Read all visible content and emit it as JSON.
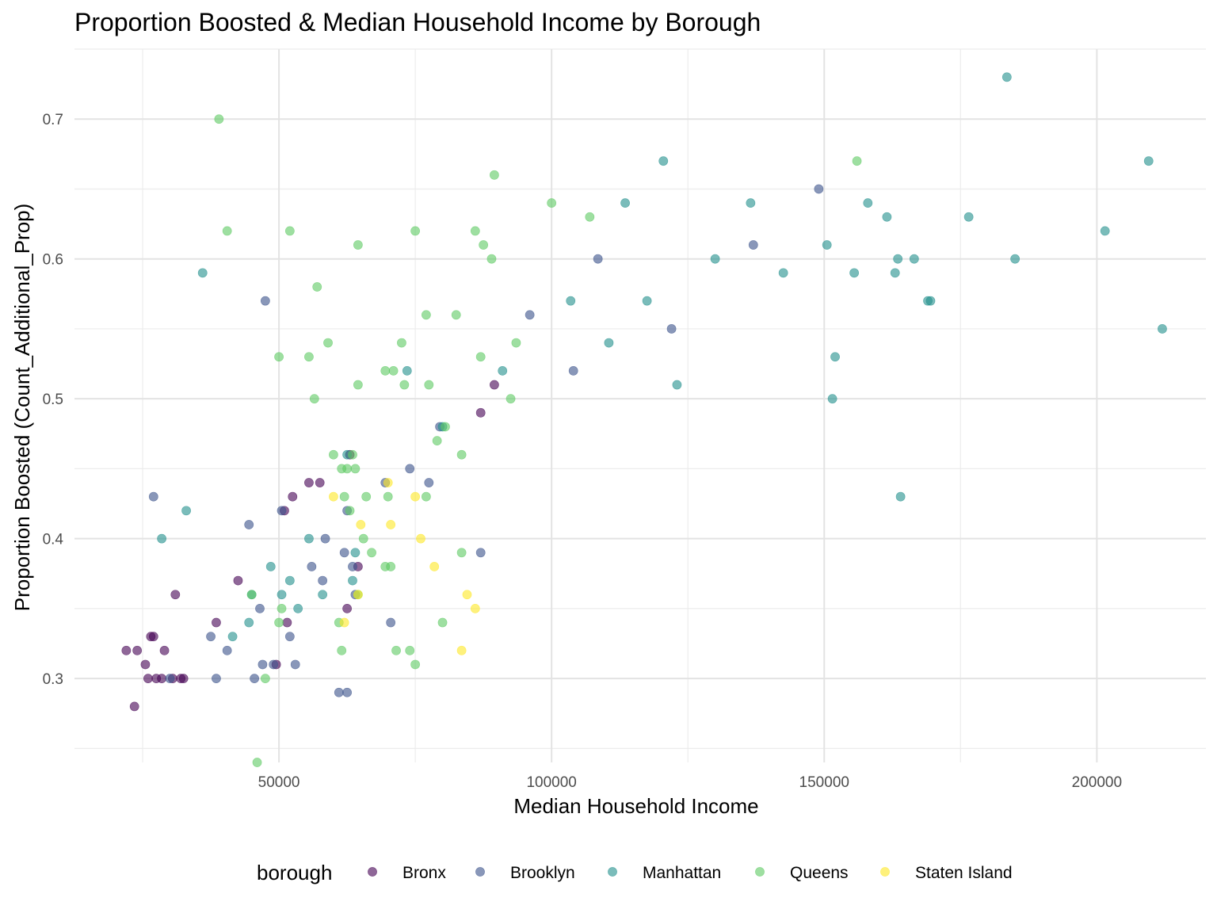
{
  "chart_data": {
    "type": "scatter",
    "title": "Proportion Boosted & Median Household Income by Borough",
    "xlabel": "Median Household Income",
    "ylabel": "Proportion Boosted (Count_Additional_Prop)",
    "xlim": [
      12500,
      220000
    ],
    "ylim": [
      0.24,
      0.75
    ],
    "x_ticks": [
      50000,
      100000,
      150000,
      200000
    ],
    "x_tick_labels": [
      "50000",
      "100000",
      "150000",
      "200000"
    ],
    "y_ticks": [
      0.3,
      0.4,
      0.5,
      0.6,
      0.7
    ],
    "y_tick_labels": [
      "0.3",
      "0.4",
      "0.5",
      "0.6",
      "0.7"
    ],
    "grid": true,
    "point_opacity": 0.6,
    "legend": {
      "title": "borough",
      "position": "bottom"
    },
    "series": [
      {
        "name": "Bronx",
        "color": "#440154",
        "points": [
          [
            22000,
            0.32
          ],
          [
            23500,
            0.28
          ],
          [
            24000,
            0.32
          ],
          [
            25500,
            0.31
          ],
          [
            26000,
            0.3
          ],
          [
            26500,
            0.33
          ],
          [
            27000,
            0.33
          ],
          [
            27500,
            0.3
          ],
          [
            28500,
            0.3
          ],
          [
            29000,
            0.32
          ],
          [
            30500,
            0.3
          ],
          [
            31000,
            0.36
          ],
          [
            32000,
            0.3
          ],
          [
            32500,
            0.3
          ],
          [
            38500,
            0.34
          ],
          [
            42500,
            0.37
          ],
          [
            49500,
            0.31
          ],
          [
            51000,
            0.42
          ],
          [
            51500,
            0.34
          ],
          [
            52500,
            0.43
          ],
          [
            55500,
            0.44
          ],
          [
            57500,
            0.44
          ],
          [
            62500,
            0.35
          ],
          [
            63000,
            0.46
          ],
          [
            64500,
            0.38
          ],
          [
            87000,
            0.49
          ],
          [
            89500,
            0.51
          ]
        ]
      },
      {
        "name": "Brooklyn",
        "color": "#3b528b",
        "points": [
          [
            27000,
            0.43
          ],
          [
            30000,
            0.3
          ],
          [
            37500,
            0.33
          ],
          [
            38500,
            0.3
          ],
          [
            40500,
            0.32
          ],
          [
            44500,
            0.41
          ],
          [
            45500,
            0.3
          ],
          [
            46500,
            0.35
          ],
          [
            47000,
            0.31
          ],
          [
            47500,
            0.57
          ],
          [
            49000,
            0.31
          ],
          [
            50500,
            0.42
          ],
          [
            52000,
            0.33
          ],
          [
            53000,
            0.31
          ],
          [
            56000,
            0.38
          ],
          [
            58000,
            0.37
          ],
          [
            58500,
            0.4
          ],
          [
            61000,
            0.29
          ],
          [
            62000,
            0.39
          ],
          [
            62500,
            0.29
          ],
          [
            62500,
            0.42
          ],
          [
            63500,
            0.38
          ],
          [
            64000,
            0.36
          ],
          [
            69500,
            0.44
          ],
          [
            70500,
            0.34
          ],
          [
            74000,
            0.45
          ],
          [
            77500,
            0.44
          ],
          [
            79500,
            0.48
          ],
          [
            87000,
            0.39
          ],
          [
            96000,
            0.56
          ],
          [
            104000,
            0.52
          ],
          [
            108500,
            0.6
          ],
          [
            122000,
            0.55
          ],
          [
            137000,
            0.61
          ],
          [
            149000,
            0.65
          ]
        ]
      },
      {
        "name": "Manhattan",
        "color": "#21908c",
        "points": [
          [
            28500,
            0.4
          ],
          [
            33000,
            0.42
          ],
          [
            36000,
            0.59
          ],
          [
            41500,
            0.33
          ],
          [
            44500,
            0.34
          ],
          [
            45000,
            0.36
          ],
          [
            48500,
            0.38
          ],
          [
            50500,
            0.36
          ],
          [
            52000,
            0.37
          ],
          [
            53500,
            0.35
          ],
          [
            55500,
            0.4
          ],
          [
            58000,
            0.36
          ],
          [
            62500,
            0.46
          ],
          [
            63500,
            0.37
          ],
          [
            64000,
            0.39
          ],
          [
            73500,
            0.52
          ],
          [
            80000,
            0.48
          ],
          [
            91000,
            0.52
          ],
          [
            103500,
            0.57
          ],
          [
            110500,
            0.54
          ],
          [
            113500,
            0.64
          ],
          [
            117500,
            0.57
          ],
          [
            120500,
            0.67
          ],
          [
            123000,
            0.51
          ],
          [
            130000,
            0.6
          ],
          [
            136500,
            0.64
          ],
          [
            142500,
            0.59
          ],
          [
            150500,
            0.61
          ],
          [
            151500,
            0.5
          ],
          [
            152000,
            0.53
          ],
          [
            155500,
            0.59
          ],
          [
            158000,
            0.64
          ],
          [
            161500,
            0.63
          ],
          [
            163000,
            0.59
          ],
          [
            163500,
            0.6
          ],
          [
            164000,
            0.43
          ],
          [
            166500,
            0.6
          ],
          [
            169000,
            0.57
          ],
          [
            169500,
            0.57
          ],
          [
            176500,
            0.63
          ],
          [
            183500,
            0.73
          ],
          [
            185000,
            0.6
          ],
          [
            201500,
            0.62
          ],
          [
            209500,
            0.67
          ],
          [
            212000,
            0.55
          ]
        ]
      },
      {
        "name": "Queens",
        "color": "#5ec962",
        "points": [
          [
            39000,
            0.7
          ],
          [
            40500,
            0.62
          ],
          [
            45000,
            0.36
          ],
          [
            46000,
            0.24
          ],
          [
            47500,
            0.3
          ],
          [
            50000,
            0.53
          ],
          [
            50000,
            0.34
          ],
          [
            50500,
            0.35
          ],
          [
            52000,
            0.62
          ],
          [
            55500,
            0.53
          ],
          [
            56500,
            0.5
          ],
          [
            57000,
            0.58
          ],
          [
            59000,
            0.54
          ],
          [
            60000,
            0.46
          ],
          [
            61000,
            0.34
          ],
          [
            61500,
            0.32
          ],
          [
            61500,
            0.45
          ],
          [
            62000,
            0.43
          ],
          [
            62500,
            0.45
          ],
          [
            63000,
            0.42
          ],
          [
            63500,
            0.46
          ],
          [
            64000,
            0.45
          ],
          [
            64500,
            0.36
          ],
          [
            64500,
            0.51
          ],
          [
            64500,
            0.61
          ],
          [
            65500,
            0.4
          ],
          [
            66000,
            0.43
          ],
          [
            67000,
            0.39
          ],
          [
            69500,
            0.38
          ],
          [
            69500,
            0.52
          ],
          [
            70000,
            0.43
          ],
          [
            70500,
            0.38
          ],
          [
            71000,
            0.52
          ],
          [
            71500,
            0.32
          ],
          [
            72500,
            0.54
          ],
          [
            73000,
            0.51
          ],
          [
            74000,
            0.32
          ],
          [
            75000,
            0.31
          ],
          [
            75000,
            0.62
          ],
          [
            77000,
            0.43
          ],
          [
            77000,
            0.56
          ],
          [
            77500,
            0.51
          ],
          [
            79000,
            0.47
          ],
          [
            80000,
            0.34
          ],
          [
            80500,
            0.48
          ],
          [
            82500,
            0.56
          ],
          [
            83500,
            0.39
          ],
          [
            83500,
            0.46
          ],
          [
            86000,
            0.62
          ],
          [
            87000,
            0.53
          ],
          [
            87500,
            0.61
          ],
          [
            89000,
            0.6
          ],
          [
            89500,
            0.66
          ],
          [
            92500,
            0.5
          ],
          [
            93500,
            0.54
          ],
          [
            100000,
            0.64
          ],
          [
            107000,
            0.63
          ],
          [
            156000,
            0.67
          ]
        ]
      },
      {
        "name": "Staten Island",
        "color": "#fde725",
        "points": [
          [
            60000,
            0.43
          ],
          [
            62000,
            0.34
          ],
          [
            64500,
            0.36
          ],
          [
            65000,
            0.41
          ],
          [
            70000,
            0.44
          ],
          [
            70500,
            0.41
          ],
          [
            75000,
            0.43
          ],
          [
            76000,
            0.4
          ],
          [
            78500,
            0.38
          ],
          [
            83500,
            0.32
          ],
          [
            84500,
            0.36
          ],
          [
            86000,
            0.35
          ]
        ]
      }
    ]
  }
}
